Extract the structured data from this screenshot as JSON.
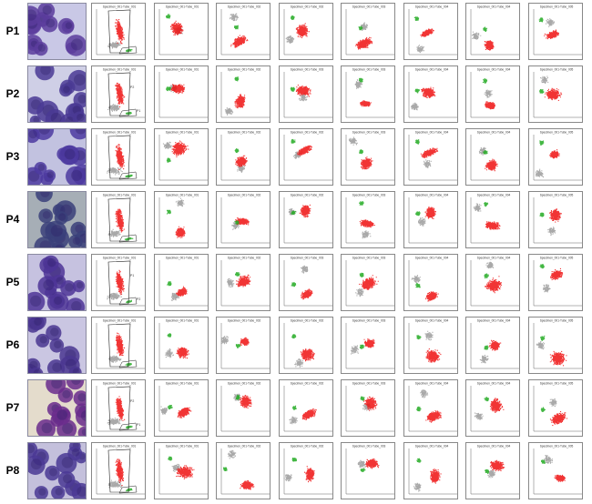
{
  "figure": {
    "rows": [
      {
        "label": "P1",
        "gate_labels": [],
        "micro_bg": "#c9c8e6",
        "cell_color": "#5b3c9c",
        "panel_texts": [
          "Specimen_001-Tube_001",
          "Specimen_001-Tube_001",
          "Specimen_001-Tube_002",
          "Specimen_001-Tube_002",
          "Specimen_001-Tube_003",
          "Specimen_001-Tube_004",
          "Specimen_001-Tube_004",
          "Specimen_001-Tube_005"
        ]
      },
      {
        "label": "P2",
        "gate_labels": [
          "P2",
          "P1"
        ],
        "micro_bg": "#cfcfe6",
        "cell_color": "#4a3a94",
        "panel_texts": [
          "Specimen_001-Tube_001",
          "Specimen_001-Tube_001",
          "Specimen_001-Tube_002",
          "Specimen_001-Tube_003",
          "Specimen_001-Tube_003",
          "Specimen_001-Tube_004",
          "Specimen_001-Tube_004",
          "Specimen_001-Tube_005"
        ]
      },
      {
        "label": "P3",
        "gate_labels": [],
        "micro_bg": "#c2c2e0",
        "cell_color": "#4c3aa0",
        "panel_texts": [
          "Specimen_001-Tube_001",
          "Specimen_001-Tube_001",
          "Specimen_001-Tube_002",
          "Specimen_001-Tube_002",
          "Specimen_001-Tube_003",
          "Specimen_001-Tube_004",
          "Specimen_001-Tube_004",
          "Specimen_001-Tube_005"
        ]
      },
      {
        "label": "P4",
        "gate_labels": [],
        "micro_bg": "#a6aeb6",
        "cell_color": "#3a3f7a",
        "panel_texts": [
          "Specimen_001-Tube_001",
          "Specimen_001-Tube_001",
          "Specimen_001-Tube_002",
          "Specimen_001-Tube_002",
          "Specimen_001-Tube_003",
          "Specimen_001-Tube_004",
          "Specimen_001-Tube_004",
          "Specimen_001-Tube_005"
        ]
      },
      {
        "label": "P5",
        "gate_labels": [
          "P1",
          "P2"
        ],
        "micro_bg": "#c6c2e0",
        "cell_color": "#4d3596",
        "panel_texts": [
          "Specimen_001-Tube_001",
          "Specimen_001-Tube_001",
          "Specimen_001-Tube_002",
          "Specimen_001-Tube_003",
          "Specimen_001-Tube_003",
          "Specimen_001-Tube_004",
          "Specimen_001-Tube_004",
          "Specimen_001-Tube_005"
        ]
      },
      {
        "label": "P6",
        "gate_labels": [],
        "micro_bg": "#cac6e2",
        "cell_color": "#4a3690",
        "panel_texts": [
          "Specimen_001-Tube_001",
          "Specimen_001-Tube_001",
          "Specimen_001-Tube_002",
          "Specimen_001-Tube_002",
          "Specimen_001-Tube_003",
          "Specimen_001-Tube_004",
          "Specimen_001-Tube_004",
          "Specimen_001-Tube_005"
        ]
      },
      {
        "label": "P7",
        "gate_labels": [
          "P2",
          "P1"
        ],
        "micro_bg": "#e4dccc",
        "cell_color": "#6a2c8c",
        "panel_texts": [
          "Specimen_001-Tube_001",
          "Specimen_001-Tube_001",
          "Specimen_001-Tube_002",
          "Specimen_001-Tube_002",
          "Specimen_001-Tube_003",
          "Specimen_001-Tube_004",
          "Specimen_001-Tube_004",
          "Specimen_001-Tube_005"
        ]
      },
      {
        "label": "P8",
        "gate_labels": [],
        "micro_bg": "#c4c0dc",
        "cell_color": "#4a3894",
        "panel_texts": [
          "Specimen_001-Tube_001",
          "Specimen_001-Tube_001",
          "Specimen_001-Tube_002",
          "Specimen_001-Tube_002",
          "Specimen_001-Tube_003",
          "Specimen_001-Tube_004",
          "Specimen_001-Tube_004",
          "Specimen_001-Tube_005"
        ]
      }
    ],
    "colors": {
      "blast": "#ee1111",
      "lymph": "#22aa22",
      "other": "#9a9a9a",
      "gate": "#222222"
    }
  }
}
